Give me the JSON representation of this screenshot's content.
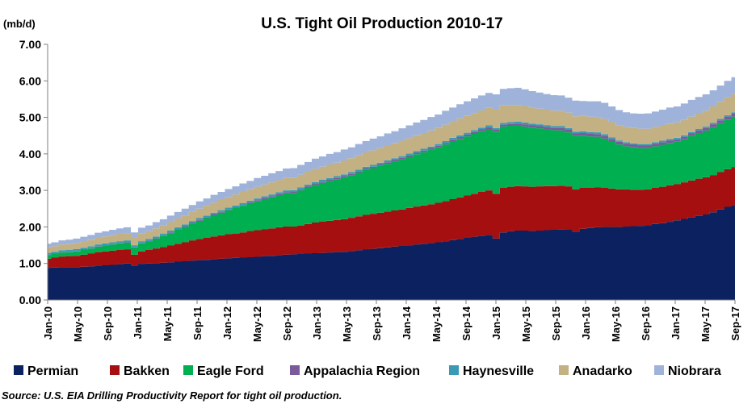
{
  "chart_data": {
    "type": "area",
    "stacked": true,
    "title": "U.S. Tight Oil Production 2010-17",
    "unit_label": "(mb/d)",
    "ylim": [
      0,
      7
    ],
    "y_ticks": [
      "0.00",
      "1.00",
      "2.00",
      "3.00",
      "4.00",
      "5.00",
      "6.00",
      "7.00"
    ],
    "x_ticks": [
      "Jan-10",
      "May-10",
      "Sep-10",
      "Jan-11",
      "May-11",
      "Sep-11",
      "Jan-12",
      "May-12",
      "Sep-12",
      "Jan-13",
      "May-13",
      "Sep-13",
      "Jan-14",
      "May-14",
      "Sep-14",
      "Jan-15",
      "May-15",
      "Sep-15",
      "Jan-16",
      "May-16",
      "Sep-16",
      "Jan-17",
      "May-17",
      "Sep-17"
    ],
    "x_range": [
      "2010-01",
      "2017-09"
    ],
    "grid": false,
    "legend_position": "bottom",
    "source": "Source: U.S. EIA Drilling Productivity Report for tight oil production.",
    "series": [
      {
        "name": "Permian",
        "color": "#0b2160",
        "values": [
          0.88,
          0.89,
          0.9,
          0.9,
          0.9,
          0.91,
          0.92,
          0.94,
          0.95,
          0.96,
          0.98,
          1.0,
          0.94,
          0.99,
          1.0,
          1.01,
          1.02,
          1.03,
          1.05,
          1.06,
          1.08,
          1.09,
          1.1,
          1.12,
          1.13,
          1.14,
          1.15,
          1.16,
          1.17,
          1.18,
          1.2,
          1.21,
          1.23,
          1.24,
          1.25,
          1.26,
          1.27,
          1.28,
          1.29,
          1.3,
          1.31,
          1.32,
          1.34,
          1.36,
          1.38,
          1.4,
          1.42,
          1.44,
          1.46,
          1.48,
          1.5,
          1.52,
          1.54,
          1.56,
          1.58,
          1.61,
          1.64,
          1.67,
          1.7,
          1.73,
          1.76,
          1.78,
          1.68,
          1.85,
          1.88,
          1.9,
          1.9,
          1.89,
          1.9,
          1.91,
          1.92,
          1.93,
          1.92,
          1.87,
          1.95,
          1.97,
          1.99,
          2.0,
          2.0,
          2.0,
          2.01,
          2.02,
          2.03,
          2.05,
          2.08,
          2.1,
          2.14,
          2.18,
          2.22,
          2.26,
          2.3,
          2.34,
          2.4,
          2.48,
          2.55,
          2.6
        ]
      },
      {
        "name": "Bakken",
        "color": "#a50f0f",
        "values": [
          0.25,
          0.27,
          0.29,
          0.3,
          0.31,
          0.33,
          0.35,
          0.37,
          0.38,
          0.39,
          0.39,
          0.38,
          0.3,
          0.34,
          0.37,
          0.4,
          0.43,
          0.46,
          0.49,
          0.52,
          0.55,
          0.58,
          0.6,
          0.62,
          0.64,
          0.66,
          0.67,
          0.69,
          0.72,
          0.73,
          0.74,
          0.75,
          0.76,
          0.77,
          0.76,
          0.78,
          0.81,
          0.84,
          0.86,
          0.87,
          0.88,
          0.89,
          0.91,
          0.93,
          0.95,
          0.96,
          0.97,
          0.98,
          0.99,
          1.0,
          1.02,
          1.04,
          1.05,
          1.06,
          1.08,
          1.1,
          1.12,
          1.14,
          1.16,
          1.18,
          1.2,
          1.22,
          1.23,
          1.22,
          1.22,
          1.22,
          1.21,
          1.21,
          1.21,
          1.21,
          1.2,
          1.2,
          1.19,
          1.16,
          1.12,
          1.1,
          1.09,
          1.07,
          1.05,
          1.03,
          1.02,
          1.0,
          0.99,
          0.98,
          0.99,
          1.0,
          1.0,
          0.99,
          1.0,
          1.01,
          1.02,
          1.02,
          1.02,
          1.02,
          1.03,
          1.04
        ]
      },
      {
        "name": "Eagle Ford",
        "color": "#00b050",
        "values": [
          0.1,
          0.1,
          0.11,
          0.11,
          0.12,
          0.13,
          0.14,
          0.15,
          0.16,
          0.17,
          0.18,
          0.19,
          0.2,
          0.22,
          0.24,
          0.27,
          0.31,
          0.34,
          0.38,
          0.42,
          0.46,
          0.5,
          0.54,
          0.58,
          0.62,
          0.66,
          0.7,
          0.73,
          0.76,
          0.79,
          0.82,
          0.85,
          0.88,
          0.91,
          0.92,
          0.96,
          1.0,
          1.03,
          1.06,
          1.09,
          1.12,
          1.15,
          1.17,
          1.2,
          1.23,
          1.25,
          1.28,
          1.31,
          1.34,
          1.37,
          1.4,
          1.43,
          1.46,
          1.49,
          1.52,
          1.55,
          1.58,
          1.6,
          1.62,
          1.64,
          1.66,
          1.68,
          1.7,
          1.68,
          1.67,
          1.66,
          1.64,
          1.62,
          1.59,
          1.56,
          1.53,
          1.51,
          1.48,
          1.46,
          1.43,
          1.41,
          1.39,
          1.35,
          1.29,
          1.23,
          1.18,
          1.16,
          1.14,
          1.13,
          1.14,
          1.15,
          1.16,
          1.16,
          1.18,
          1.22,
          1.25,
          1.28,
          1.31,
          1.34,
          1.36,
          1.38
        ]
      },
      {
        "name": "Appalachia Region",
        "color": "#7a5a9a",
        "values": [
          0.01,
          0.01,
          0.01,
          0.01,
          0.01,
          0.01,
          0.01,
          0.01,
          0.01,
          0.01,
          0.01,
          0.01,
          0.01,
          0.01,
          0.01,
          0.01,
          0.01,
          0.02,
          0.02,
          0.02,
          0.02,
          0.02,
          0.02,
          0.02,
          0.02,
          0.02,
          0.02,
          0.02,
          0.02,
          0.03,
          0.03,
          0.03,
          0.03,
          0.03,
          0.03,
          0.03,
          0.03,
          0.03,
          0.03,
          0.03,
          0.03,
          0.03,
          0.03,
          0.03,
          0.04,
          0.04,
          0.04,
          0.04,
          0.04,
          0.04,
          0.04,
          0.04,
          0.04,
          0.04,
          0.04,
          0.04,
          0.05,
          0.05,
          0.05,
          0.05,
          0.05,
          0.05,
          0.05,
          0.05,
          0.05,
          0.05,
          0.06,
          0.06,
          0.06,
          0.06,
          0.06,
          0.07,
          0.07,
          0.07,
          0.07,
          0.07,
          0.07,
          0.07,
          0.07,
          0.07,
          0.07,
          0.07,
          0.07,
          0.07,
          0.07,
          0.07,
          0.07,
          0.07,
          0.07,
          0.07,
          0.07,
          0.07,
          0.08,
          0.08,
          0.08,
          0.08
        ]
      },
      {
        "name": "Haynesville",
        "color": "#3a9ab5",
        "values": [
          0.05,
          0.05,
          0.05,
          0.05,
          0.05,
          0.05,
          0.05,
          0.05,
          0.05,
          0.05,
          0.05,
          0.05,
          0.05,
          0.05,
          0.05,
          0.05,
          0.05,
          0.05,
          0.05,
          0.05,
          0.05,
          0.05,
          0.05,
          0.05,
          0.05,
          0.05,
          0.05,
          0.05,
          0.05,
          0.05,
          0.05,
          0.05,
          0.05,
          0.05,
          0.05,
          0.05,
          0.05,
          0.05,
          0.05,
          0.05,
          0.05,
          0.05,
          0.05,
          0.05,
          0.05,
          0.05,
          0.05,
          0.05,
          0.05,
          0.05,
          0.05,
          0.05,
          0.05,
          0.05,
          0.05,
          0.05,
          0.05,
          0.05,
          0.05,
          0.05,
          0.05,
          0.05,
          0.05,
          0.05,
          0.05,
          0.05,
          0.05,
          0.05,
          0.05,
          0.05,
          0.05,
          0.05,
          0.05,
          0.05,
          0.05,
          0.05,
          0.05,
          0.05,
          0.04,
          0.04,
          0.04,
          0.04,
          0.04,
          0.04,
          0.04,
          0.04,
          0.04,
          0.04,
          0.04,
          0.04,
          0.04,
          0.04,
          0.04,
          0.04,
          0.04,
          0.04
        ]
      },
      {
        "name": "Anadarko",
        "color": "#c4b183",
        "values": [
          0.15,
          0.15,
          0.16,
          0.16,
          0.17,
          0.17,
          0.18,
          0.18,
          0.19,
          0.19,
          0.2,
          0.2,
          0.2,
          0.21,
          0.21,
          0.22,
          0.22,
          0.23,
          0.24,
          0.24,
          0.25,
          0.26,
          0.27,
          0.28,
          0.29,
          0.29,
          0.3,
          0.31,
          0.31,
          0.32,
          0.32,
          0.33,
          0.33,
          0.34,
          0.34,
          0.35,
          0.35,
          0.36,
          0.36,
          0.37,
          0.37,
          0.38,
          0.38,
          0.39,
          0.39,
          0.4,
          0.4,
          0.41,
          0.41,
          0.42,
          0.42,
          0.43,
          0.43,
          0.44,
          0.44,
          0.45,
          0.45,
          0.46,
          0.46,
          0.47,
          0.47,
          0.48,
          0.5,
          0.48,
          0.47,
          0.46,
          0.45,
          0.44,
          0.43,
          0.42,
          0.42,
          0.42,
          0.42,
          0.42,
          0.42,
          0.42,
          0.42,
          0.42,
          0.42,
          0.42,
          0.42,
          0.42,
          0.42,
          0.42,
          0.42,
          0.42,
          0.42,
          0.42,
          0.42,
          0.42,
          0.42,
          0.43,
          0.45,
          0.47,
          0.49,
          0.5
        ]
      },
      {
        "name": "Niobrara",
        "color": "#9fb3da",
        "values": [
          0.1,
          0.11,
          0.11,
          0.12,
          0.12,
          0.13,
          0.13,
          0.14,
          0.14,
          0.15,
          0.15,
          0.16,
          0.15,
          0.16,
          0.16,
          0.17,
          0.17,
          0.18,
          0.18,
          0.19,
          0.19,
          0.2,
          0.2,
          0.21,
          0.21,
          0.22,
          0.22,
          0.23,
          0.23,
          0.24,
          0.24,
          0.25,
          0.25,
          0.26,
          0.26,
          0.27,
          0.27,
          0.28,
          0.28,
          0.29,
          0.29,
          0.3,
          0.3,
          0.31,
          0.31,
          0.32,
          0.32,
          0.33,
          0.33,
          0.34,
          0.35,
          0.35,
          0.36,
          0.37,
          0.37,
          0.38,
          0.38,
          0.39,
          0.4,
          0.4,
          0.41,
          0.41,
          0.42,
          0.45,
          0.46,
          0.47,
          0.46,
          0.45,
          0.44,
          0.43,
          0.43,
          0.42,
          0.41,
          0.43,
          0.41,
          0.42,
          0.43,
          0.44,
          0.43,
          0.41,
          0.4,
          0.4,
          0.41,
          0.42,
          0.42,
          0.43,
          0.44,
          0.44,
          0.45,
          0.46,
          0.46,
          0.45,
          0.44,
          0.44,
          0.45,
          0.46
        ]
      }
    ]
  }
}
